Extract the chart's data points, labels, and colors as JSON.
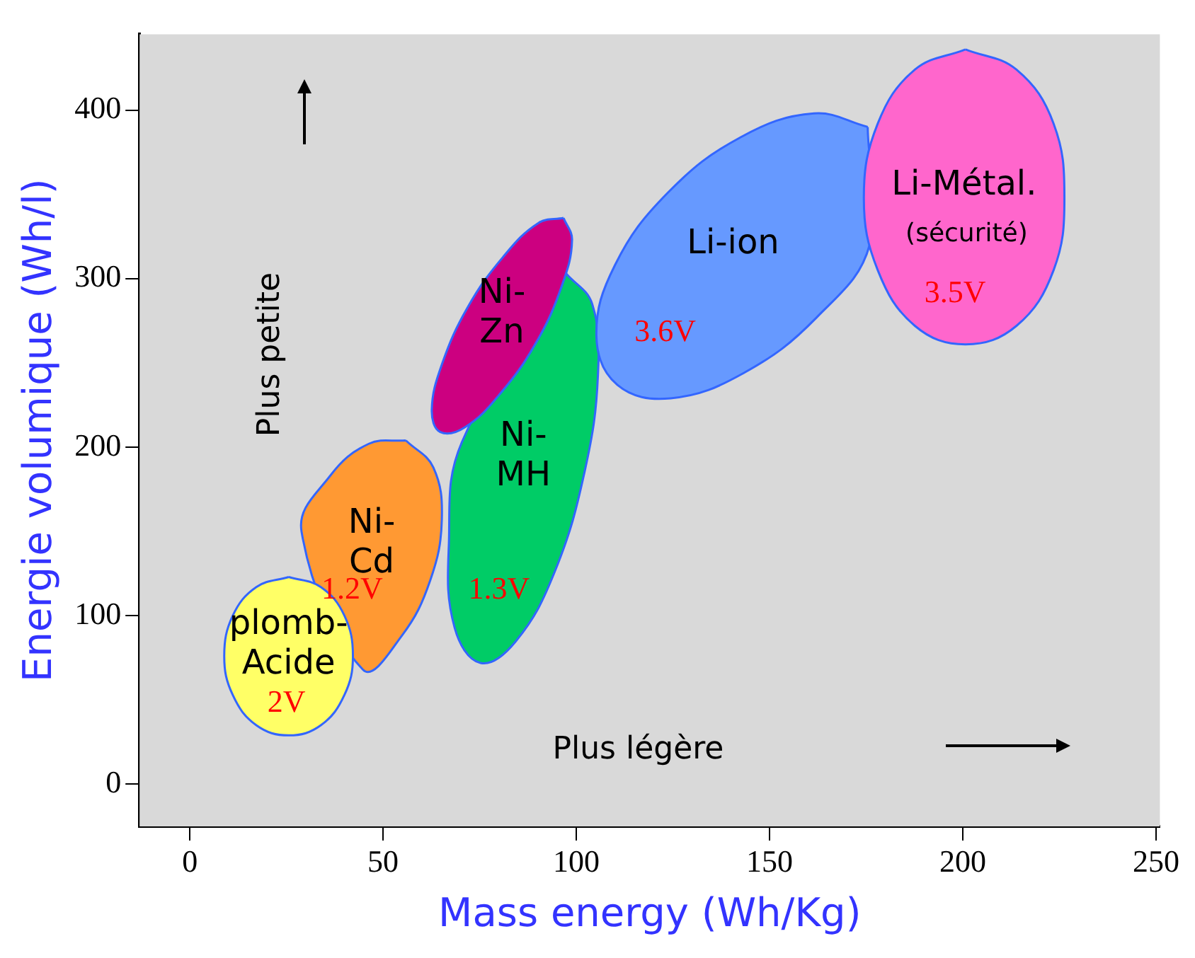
{
  "chart_data": {
    "type": "area",
    "xlabel": "Mass energy (Wh/Kg)",
    "ylabel": "Energie volumique (Wh/l)",
    "xlim": [
      -13,
      251
    ],
    "xticks": [
      0,
      50,
      100,
      150,
      200,
      250
    ],
    "ylim": [
      -25,
      445
    ],
    "yticks": [
      0,
      100,
      200,
      300,
      400
    ],
    "grid": false,
    "legend": false,
    "series": [
      {
        "name": "Ni-Cd",
        "color": "#ff9933",
        "x": [
          55.9,
          63,
          65.2,
          62.2,
          54.8,
          44.8,
          28.9,
          36.3,
          46.3,
          55.9
        ],
        "values": [
          204,
          188,
          157,
          121,
          88,
          68,
          150,
          183,
          202,
          204
        ]
      },
      {
        "name": "plomb-Acide",
        "color": "#ffff66",
        "x": [
          25.6,
          33.9,
          40,
          42.2,
          40,
          33.9,
          25.6,
          17.2,
          11.1,
          8.9,
          11.1,
          17.2,
          25.6
        ],
        "values": [
          123,
          117,
          100,
          76,
          53,
          35,
          29,
          35,
          53,
          76,
          100,
          117,
          123
        ]
      },
      {
        "name": "Ni-MH",
        "color": "#00cc66",
        "x": [
          97.4,
          104.1,
          105.6,
          102.2,
          94.4,
          84.4,
          75.2,
          68.5,
          67,
          70.4,
          97.4
        ],
        "values": [
          303,
          285,
          243,
          186,
          126,
          85,
          72,
          93,
          141,
          203,
          303
        ]
      },
      {
        "name": "Ni-Zn",
        "color": "#cc0080",
        "x": [
          96.7,
          98.9,
          96.3,
          89.6,
          80.4,
          71.3,
          64.8,
          62.6,
          65.2,
          71.9,
          81.1,
          90.2,
          96.7
        ],
        "values": [
          336,
          323,
          296,
          262,
          232,
          212,
          209,
          222,
          249,
          283,
          313,
          333,
          336
        ]
      },
      {
        "name": "Li-ion",
        "color": "#6699ff",
        "x": [
          175.4,
          175.9,
          162.2,
          143.3,
          124.4,
          110.6,
          105.2,
          110,
          123.7,
          142.6,
          161.5,
          175.4
        ],
        "values": [
          390,
          320,
          277,
          244,
          229,
          237,
          266,
          308,
          351,
          384,
          398,
          390
        ]
      },
      {
        "name": "Li-Métal.",
        "color": "#ff66cc",
        "x": [
          200.7,
          213.9,
          223.5,
          226.3,
          223.5,
          213.9,
          200.7,
          187.6,
          178,
          174.4,
          178,
          187.6,
          200.7
        ],
        "values": [
          436,
          424,
          392,
          348,
          305,
          272,
          261,
          272,
          305,
          348,
          392,
          424,
          436
        ]
      }
    ],
    "annotations": [
      "Plus petite",
      "Plus légère",
      "2V",
      "1.2V",
      "1.3V",
      "3.6V",
      "3.5V",
      "(sécurité)"
    ]
  }
}
